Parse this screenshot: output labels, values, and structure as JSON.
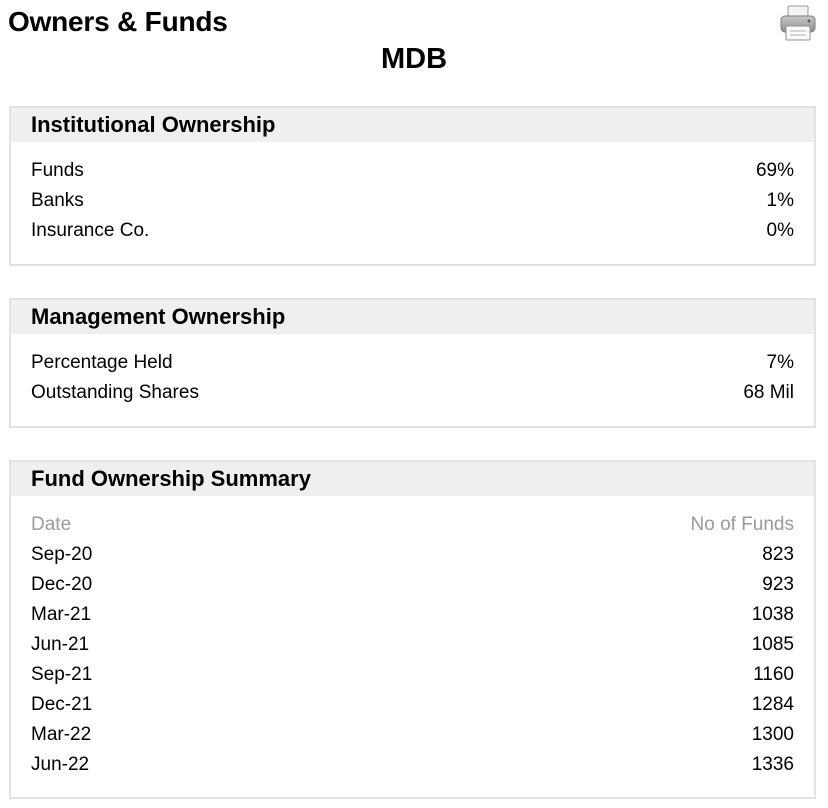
{
  "page": {
    "title": "Owners & Funds",
    "ticker": "MDB",
    "print_icon": "printer-icon"
  },
  "institutional": {
    "title": "Institutional Ownership",
    "rows": [
      {
        "label": "Funds",
        "value": "69%"
      },
      {
        "label": "Banks",
        "value": "1%"
      },
      {
        "label": "Insurance Co.",
        "value": "0%"
      }
    ]
  },
  "management": {
    "title": "Management Ownership",
    "rows": [
      {
        "label": "Percentage Held",
        "value": "7%"
      },
      {
        "label": "Outstanding Shares",
        "value": "68 Mil"
      }
    ]
  },
  "fund_summary": {
    "title": "Fund Ownership Summary",
    "columns": {
      "date": "Date",
      "count": "No of Funds"
    },
    "rows": [
      {
        "date": "Sep-20",
        "count": "823"
      },
      {
        "date": "Dec-20",
        "count": "923"
      },
      {
        "date": "Mar-21",
        "count": "1038"
      },
      {
        "date": "Jun-21",
        "count": "1085"
      },
      {
        "date": "Sep-21",
        "count": "1160"
      },
      {
        "date": "Dec-21",
        "count": "1284"
      },
      {
        "date": "Mar-22",
        "count": "1300"
      },
      {
        "date": "Jun-22",
        "count": "1336"
      }
    ]
  }
}
